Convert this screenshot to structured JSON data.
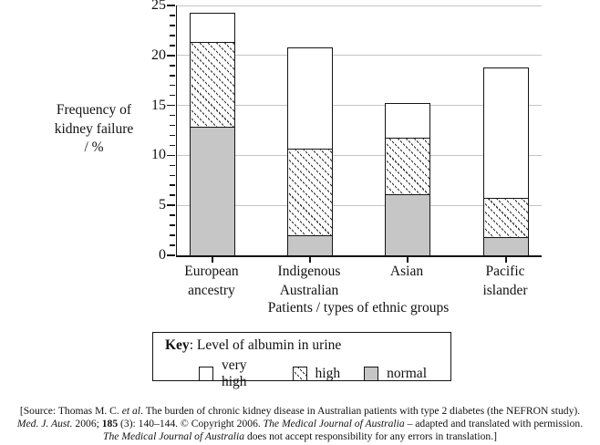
{
  "chart_data": {
    "type": "bar",
    "stacked": true,
    "categories": [
      "European ancestry",
      "Indigenous Australian",
      "Asian",
      "Pacific islander"
    ],
    "categories_lines": [
      [
        "European",
        "ancestry"
      ],
      [
        "Indigenous",
        "Australian"
      ],
      [
        "Asian"
      ],
      [
        "Pacific",
        "islander"
      ]
    ],
    "series": [
      {
        "name": "normal",
        "values": [
          13,
          2.2,
          6.3,
          2
        ]
      },
      {
        "name": "high",
        "values": [
          8.6,
          8.8,
          5.8,
          4
        ]
      },
      {
        "name": "very high",
        "values": [
          2.9,
          10,
          3.3,
          13
        ]
      }
    ],
    "stack_totals": [
      24.5,
      21,
      15.4,
      19
    ],
    "ylabel": "Frequency of kidney failure / %",
    "ylabel_lines": [
      "Frequency of",
      "kidney failure",
      "/ %"
    ],
    "xlabel": "Patients / types of ethnic groups",
    "ylim": [
      0,
      25
    ],
    "yticks": [
      0,
      5,
      10,
      15,
      20,
      25
    ],
    "minor_tick_step": 1,
    "grid": true,
    "legend_position": "boxed-below"
  },
  "legend": {
    "key_word": "Key",
    "title_rest": ":  Level of albumin in urine",
    "items": [
      {
        "label": "very high",
        "swatch": "white"
      },
      {
        "label": "high",
        "swatch": "hatch"
      },
      {
        "label": "normal",
        "swatch": "gray"
      }
    ]
  },
  "source": {
    "line1_parts": [
      "[Source: Thomas M. C. ",
      "et al",
      ". The burden of chronic kidney disease in Australian patients with type 2 diabetes (the NEFRON study)."
    ],
    "line2_parts": [
      "Med. J. Aust.",
      " 2006; ",
      "185",
      " (3): 140–144. © Copyright 2006. ",
      "The Medical Journal of Australia",
      " – adapted and translated with permission."
    ],
    "line3_parts": [
      "The Medical Journal of Australia",
      " does not accept responsibility for any errors in translation.]"
    ]
  },
  "colors": {
    "bar_normal_fill": "#c6c6c6",
    "bar_outline": "#151515",
    "gridline": "#c4c4c4",
    "background": "#ffffff"
  }
}
